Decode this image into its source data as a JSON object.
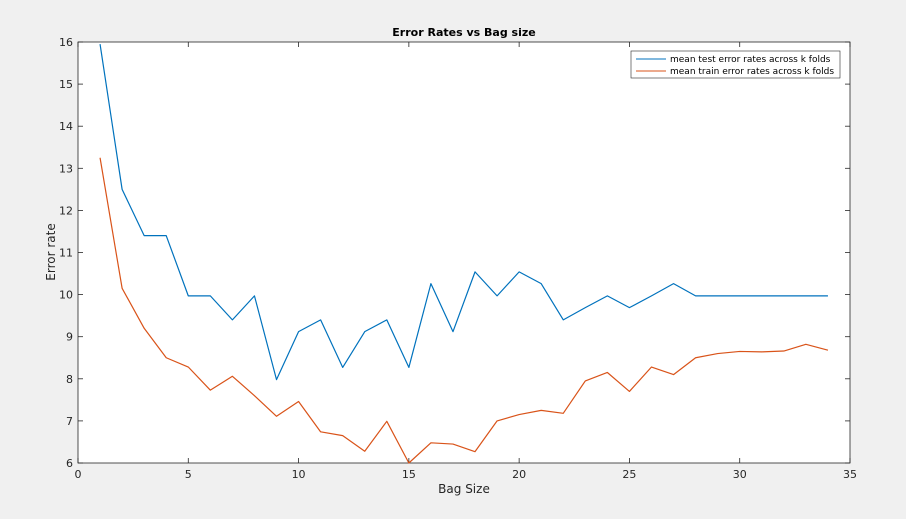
{
  "chart_data": {
    "type": "line",
    "title": "Error Rates vs Bag size",
    "xlabel": "Bag Size",
    "ylabel": "Error rate",
    "xlim": [
      0,
      35
    ],
    "ylim": [
      6,
      16
    ],
    "xticks": [
      0,
      5,
      10,
      15,
      20,
      25,
      30,
      35
    ],
    "yticks": [
      6,
      7,
      8,
      9,
      10,
      11,
      12,
      13,
      14,
      15,
      16
    ],
    "grid": false,
    "legend_location": "top-right",
    "x": [
      1,
      2,
      3,
      4,
      5,
      6,
      7,
      8,
      9,
      10,
      11,
      12,
      13,
      14,
      15,
      16,
      17,
      18,
      19,
      20,
      21,
      22,
      23,
      24,
      25,
      26,
      27,
      28,
      29,
      30,
      31,
      32,
      33,
      34
    ],
    "series": [
      {
        "name": "mean test error rates across k folds",
        "color": "#0072BD",
        "values": [
          15.95,
          12.5,
          11.4,
          11.4,
          9.97,
          9.97,
          9.4,
          9.97,
          7.98,
          9.12,
          9.4,
          8.27,
          9.12,
          9.4,
          8.27,
          10.26,
          9.12,
          10.54,
          9.97,
          10.54,
          10.26,
          9.4,
          9.69,
          9.97,
          9.69,
          9.97,
          10.26,
          9.97,
          9.97,
          9.97,
          9.97,
          9.97,
          9.97,
          9.97
        ]
      },
      {
        "name": "mean train error rates across k folds",
        "color": "#D95319",
        "values": [
          13.25,
          10.15,
          9.2,
          8.5,
          8.28,
          7.73,
          8.06,
          7.6,
          7.11,
          7.46,
          6.74,
          6.65,
          6.28,
          6.99,
          6.0,
          6.48,
          6.45,
          6.27,
          7.0,
          7.15,
          7.25,
          7.18,
          7.95,
          8.15,
          7.7,
          8.28,
          8.1,
          8.5,
          8.6,
          8.65,
          8.64,
          8.66,
          8.82,
          8.68
        ]
      }
    ]
  }
}
